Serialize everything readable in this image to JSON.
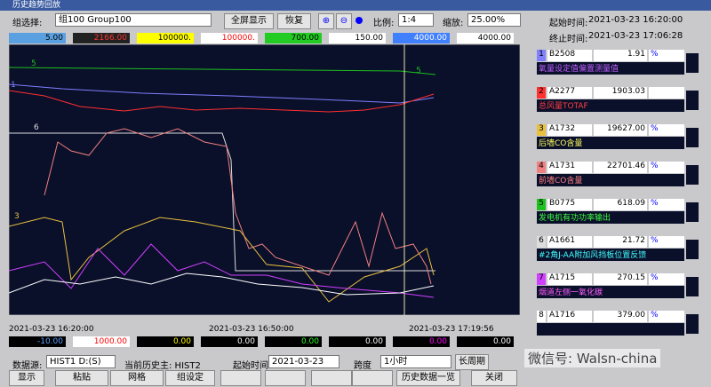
{
  "window_title": "历史趋势回放",
  "toolbar": {
    "group_label": "组选择:",
    "group_value": "组100 Group100",
    "fullscreen": "全屏显示",
    "restore": "恢复",
    "ratio_label": "比例:",
    "ratio_value": "1:4",
    "zoom_label": "缩放:",
    "zoom_value": "25.00%",
    "start_label": "起始时间:",
    "start_value": "2021-03-23 16:20:00",
    "end_label": "终止时间:",
    "end_value": "2021-03-23 17:06:28"
  },
  "scales_top": [
    "5.00",
    "2166.00",
    "100000.",
    "100000.",
    "700.00",
    "150.00",
    "4000.00",
    "4000.00"
  ],
  "scales_bottom": [
    "-10.00",
    "1000.00",
    "0.00",
    "0.00",
    "0.00",
    "0.00",
    "0.00",
    "0.00"
  ],
  "time_axis": [
    "2021-03-23 16:20:00",
    "2021-03-23 16:50:00",
    "2021-03-23 17:19:56"
  ],
  "pen_labels": [
    "5",
    "1",
    "6",
    "3",
    "5"
  ],
  "pens": [
    {
      "no": "1",
      "id": "B2508",
      "value": "1.91",
      "unit": "%",
      "desc": "氧量设定值偏置测量值"
    },
    {
      "no": "2",
      "id": "A2277",
      "value": "1903.03",
      "unit": "",
      "desc": "总风量TOTAF"
    },
    {
      "no": "3",
      "id": "A1732",
      "value": "19627.00",
      "unit": "%",
      "desc": "后墙CO含量"
    },
    {
      "no": "4",
      "id": "A1731",
      "value": "22701.46",
      "unit": "%",
      "desc": "前墙CO含量"
    },
    {
      "no": "5",
      "id": "B0775",
      "value": "618.09",
      "unit": "%",
      "desc": "发电机有功功率输出"
    },
    {
      "no": "6",
      "id": "A1661",
      "value": "21.72",
      "unit": "%",
      "desc": "#2角J-AA附加风挡板位置反馈"
    },
    {
      "no": "7",
      "id": "A1715",
      "value": "270.15",
      "unit": "%",
      "desc": "烟道左侧一氧化碳"
    },
    {
      "no": "8",
      "id": "A1716",
      "value": "379.00",
      "unit": "%",
      "desc": ""
    }
  ],
  "bottom": {
    "source_label": "数据源:",
    "source_value": "HIST1 D:(S)",
    "current_label": "当前历史主: HIST2",
    "start_label": "起始时间",
    "start_value": "2021-03-23",
    "span_label": "跨度",
    "span_value": "1小时",
    "long_period": "长周期"
  },
  "buttons": [
    "显示",
    "粘贴",
    "网格",
    "组设定",
    "历史数据一览",
    "关闭"
  ],
  "watermark": "微信号: Walsn-china"
}
